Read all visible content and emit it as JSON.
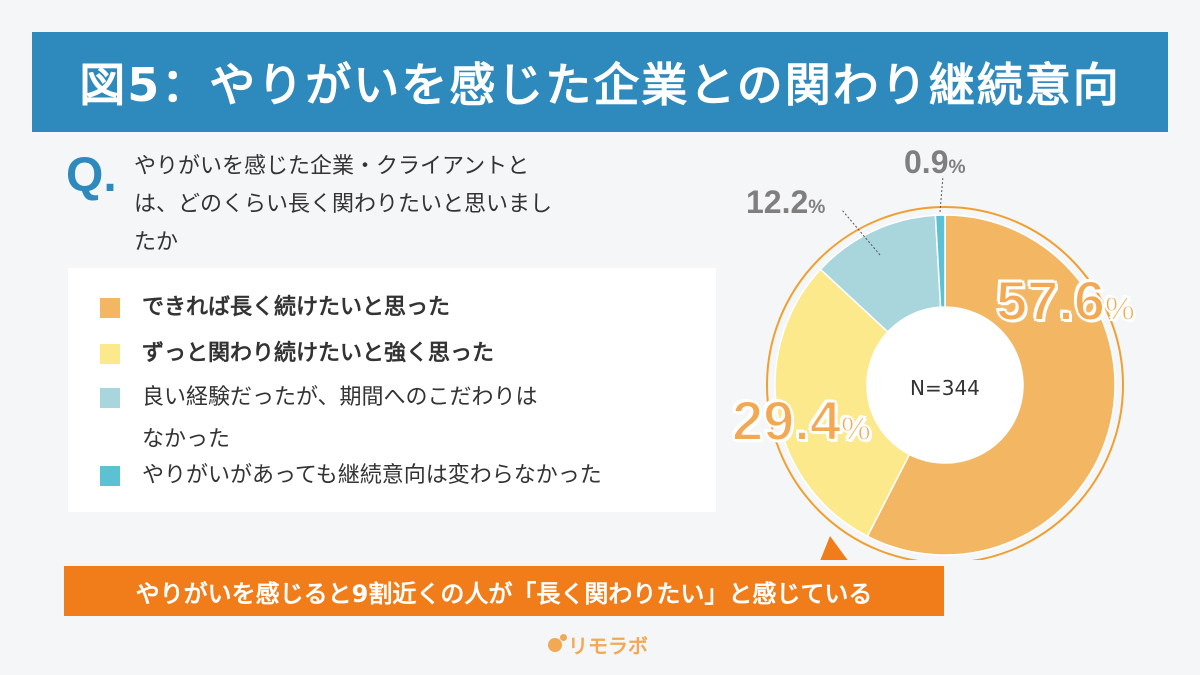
{
  "title": "図5：やりがいを感じた企業との関わり継続意向",
  "question": {
    "mark": "Q.",
    "lines": [
      "やりがいを感じた企業・クライアントと",
      "は、どのくらい長く関わりたいと思いまし",
      "たか"
    ]
  },
  "legend": [
    {
      "lines": [
        "できれば長く続けたいと思った"
      ],
      "color": "#f3b662",
      "bold": true
    },
    {
      "lines": [
        "ずっと関わり続けたいと強く思った"
      ],
      "color": "#fbe98b",
      "bold": true
    },
    {
      "lines": [
        "良い経験だったが、期間へのこだわりは",
        "なかった"
      ],
      "color": "#a9d5dd",
      "bold": false
    },
    {
      "lines": [
        "やりがいがあっても継続意向は変わらなかった"
      ],
      "color": "#5cc2d3",
      "bold": false
    }
  ],
  "chart_data": {
    "type": "pie",
    "donut": true,
    "center_label": "N=344",
    "slices": [
      {
        "name": "できれば長く続けたいと思った",
        "value": 57.6,
        "label": "57.6",
        "unit": "%",
        "color": "#f3b662"
      },
      {
        "name": "ずっと関わり続けたいと強く思った",
        "value": 29.4,
        "label": "29.4",
        "unit": "%",
        "color": "#fbe98b"
      },
      {
        "name": "良い経験だったが、期間へのこだわりはなかった",
        "value": 12.2,
        "label": "12.2",
        "unit": "%",
        "color": "#a9d5dd"
      },
      {
        "name": "やりがいがあっても継続意向は変わらなかった",
        "value": 0.9,
        "label": "0.9",
        "unit": "%",
        "color": "#5cc2d3"
      }
    ],
    "outline_color": "#f0a030"
  },
  "banner": "やりがいを感じると9割近くの人が「長く関わりたい」と感じている",
  "logo": "リモラボ"
}
